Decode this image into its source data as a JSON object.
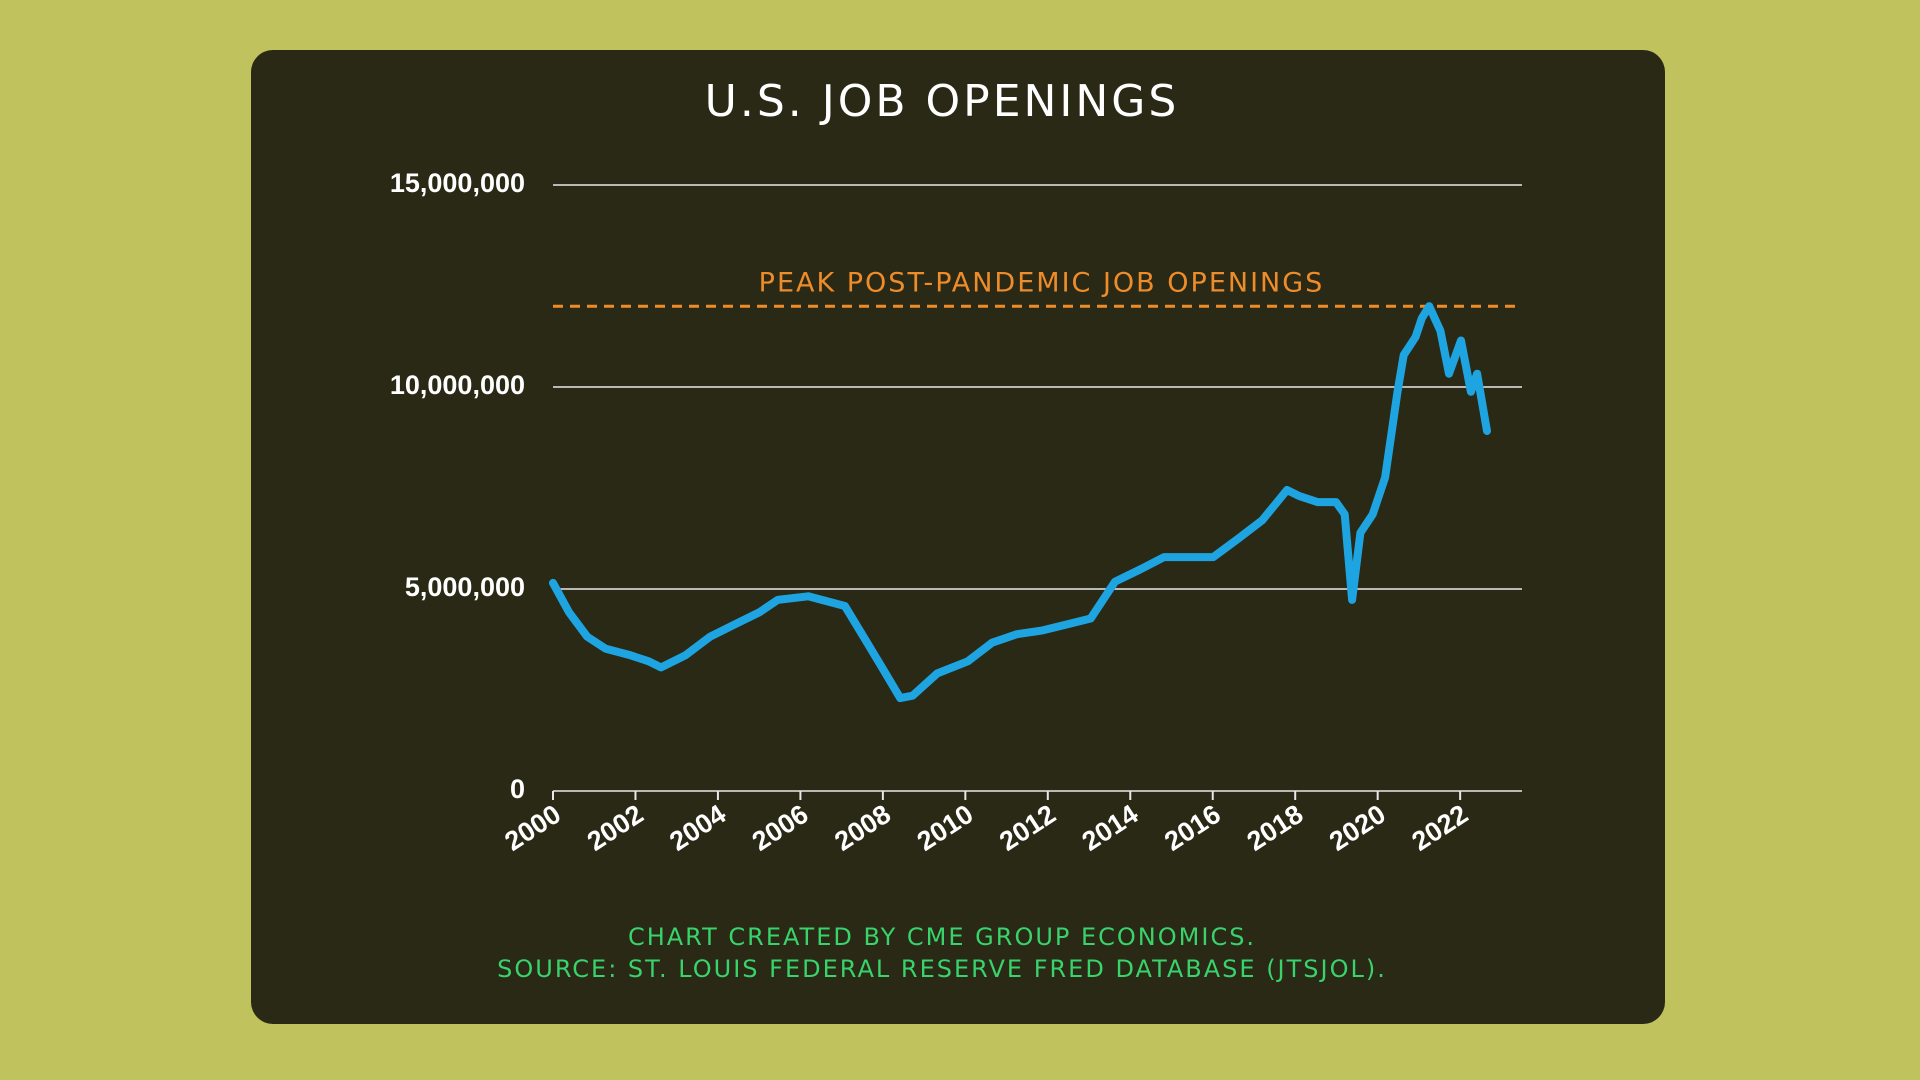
{
  "chart_data": {
    "type": "line",
    "title": "U.S. JOB OPENINGS",
    "x": [
      2000,
      2000.39,
      2000.83,
      2001.28,
      2001.88,
      2002.32,
      2002.62,
      2003.21,
      2003.81,
      2004.4,
      2005.0,
      2005.45,
      2006.19,
      2007.08,
      2007.53,
      2007.98,
      2008.42,
      2008.72,
      2009.32,
      2010.06,
      2010.65,
      2011.25,
      2011.85,
      2012.44,
      2013.04,
      2013.63,
      2014.23,
      2014.82,
      2015.42,
      2016.01,
      2016.61,
      2017.2,
      2017.8,
      2018.1,
      2018.54,
      2018.99,
      2019.2,
      2019.38,
      2019.58,
      2019.88,
      2020.18,
      2020.48,
      2020.63,
      2020.92,
      2021.07,
      2021.25,
      2021.52,
      2021.73,
      2022.02,
      2022.26,
      2022.41,
      2022.65
    ],
    "values": [
      5150000,
      4420000,
      3820000,
      3520000,
      3360000,
      3210000,
      3060000,
      3360000,
      3820000,
      4120000,
      4420000,
      4730000,
      4820000,
      4580000,
      3820000,
      3060000,
      2300000,
      2360000,
      2910000,
      3210000,
      3670000,
      3880000,
      3970000,
      4120000,
      4270000,
      5180000,
      5480000,
      5790000,
      5790000,
      5790000,
      6240000,
      6700000,
      7450000,
      7300000,
      7150000,
      7150000,
      6850000,
      4730000,
      6390000,
      6850000,
      7760000,
      9880000,
      10790000,
      11240000,
      11700000,
      12000000,
      11390000,
      10330000,
      11150000,
      9880000,
      10330000,
      8910000
    ],
    "color": "#1ea5e1",
    "xlim": [
      2000,
      2023.5
    ],
    "xticks": [
      2000,
      2002,
      2004,
      2006,
      2008,
      2010,
      2012,
      2014,
      2016,
      2018,
      2020,
      2022
    ],
    "ylim": [
      0,
      15000000
    ],
    "yticks": [
      0,
      {
        "value": 5000000,
        "label": "5,000,000"
      },
      {
        "value": 10000000,
        "label": "10,000,000"
      },
      {
        "value": 15000000,
        "label": "15,000,000"
      }
    ],
    "grid": true,
    "reference_line": {
      "value": 12000000,
      "label": "PEAK POST-PANDEMIC JOB OPENINGS",
      "color": "#ef8c2a"
    },
    "notes": [
      "CHART CREATED BY CME GROUP ECONOMICS.",
      "SOURCE: ST. LOUIS FEDERAL RESERVE FRED DATABASE (JTSJOL)."
    ]
  }
}
